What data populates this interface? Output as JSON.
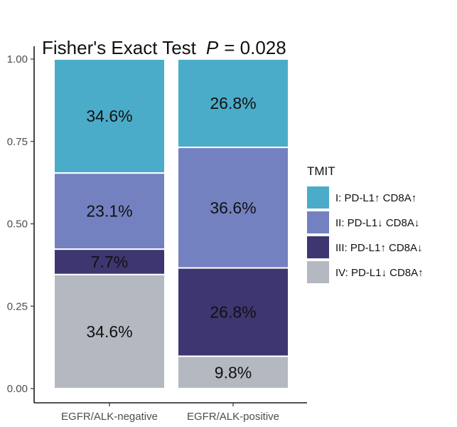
{
  "chart_data": {
    "type": "bar",
    "stacked": true,
    "title": "Fisher's Exact Test",
    "title_stat_symbol": "P",
    "title_stat_value": "= 0.028",
    "xlabel": "",
    "ylabel": "",
    "ylim": [
      0,
      1
    ],
    "yticks": [
      "0.00",
      "0.25",
      "0.50",
      "0.75",
      "1.00"
    ],
    "categories": [
      "EGFR/ALK-negative",
      "EGFR/ALK-positive"
    ],
    "legend": {
      "title": "TMIT",
      "position": "right"
    },
    "series": [
      {
        "name": "I: PD-L1↑ CD8A↑",
        "color": "#4bacca",
        "values": [
          0.346,
          0.268
        ],
        "labels": [
          "34.6%",
          "26.8%"
        ]
      },
      {
        "name": "II: PD-L1↓ CD8A↓",
        "color": "#7481c1",
        "values": [
          0.231,
          0.366
        ],
        "labels": [
          "23.1%",
          "36.6%"
        ]
      },
      {
        "name": "III: PD-L1↑ CD8A↓",
        "color": "#3e3670",
        "values": [
          0.077,
          0.268
        ],
        "labels": [
          "7.7%",
          "26.8%"
        ]
      },
      {
        "name": "IV: PD-L1↓ CD8A↑",
        "color": "#b4b8c1",
        "values": [
          0.346,
          0.098
        ],
        "labels": [
          "34.6%",
          "9.8%"
        ]
      }
    ]
  }
}
